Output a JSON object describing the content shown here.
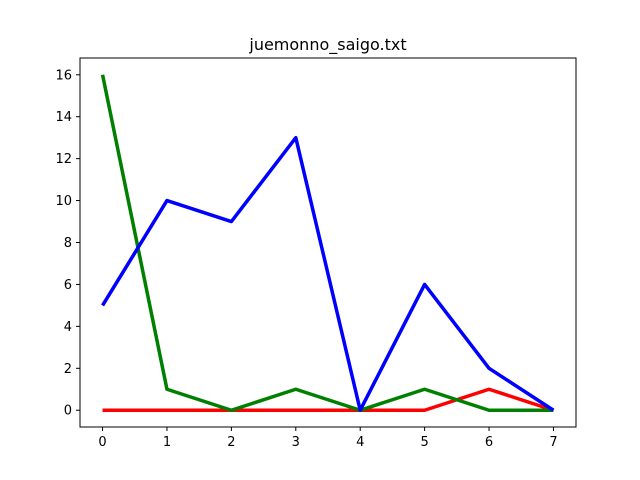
{
  "chart_data": {
    "type": "line",
    "title": "juemonno_saigo.txt",
    "xlabel": "",
    "ylabel": "",
    "x": [
      0,
      1,
      2,
      3,
      4,
      5,
      6,
      7
    ],
    "xlim": [
      -0.35,
      7.35
    ],
    "ylim": [
      -0.8,
      16.8
    ],
    "xticks": [
      0,
      1,
      2,
      3,
      4,
      5,
      6,
      7
    ],
    "yticks": [
      0,
      2,
      4,
      6,
      8,
      10,
      12,
      14,
      16
    ],
    "grid": false,
    "legend": "none",
    "series": [
      {
        "color": "#ff0000",
        "values": [
          0,
          0,
          0,
          0,
          0,
          0,
          1,
          0
        ]
      },
      {
        "color": "#008000",
        "values": [
          16,
          1,
          0,
          1,
          0,
          1,
          0,
          0
        ]
      },
      {
        "color": "#0000ff",
        "values": [
          5,
          10,
          9,
          13,
          0,
          6,
          2,
          0
        ]
      }
    ]
  }
}
